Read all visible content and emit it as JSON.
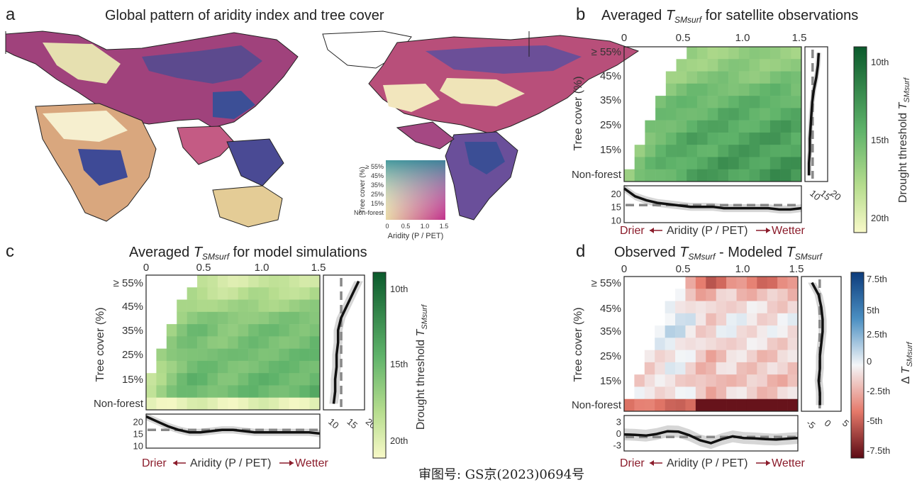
{
  "panels": {
    "a": {
      "letter": "a",
      "title": "Global pattern of aridity index and tree cover",
      "legend": {
        "ylabel": "Tree cover (%)",
        "xlabel": "Aridity (P / PET)",
        "yticks": [
          "≥ 55%",
          "45%",
          "35%",
          "25%",
          "15%",
          "Non-forest"
        ],
        "xticks": [
          "0",
          "0.5",
          "1.0",
          "1.5"
        ]
      }
    },
    "b": {
      "letter": "b",
      "title_pre": "Averaged ",
      "title_var": "T",
      "title_sub": "SMsurf",
      "title_post": " for satellite observations"
    },
    "c": {
      "letter": "c",
      "title_pre": "Averaged ",
      "title_var": "T",
      "title_sub": "SMsurf",
      "title_post": " for model simulations"
    },
    "d": {
      "letter": "d",
      "title_pre": "Observed ",
      "title_var": "T",
      "title_sub": "SMsurf",
      "title_mid": " - Modeled ",
      "title_var2": "T",
      "title_sub2": "SMsurf"
    }
  },
  "axes": {
    "x_ticks": [
      "0",
      "0.5",
      "1.0",
      "1.5"
    ],
    "y_ticks": [
      "≥ 55%",
      "45%",
      "35%",
      "25%",
      "15%",
      "Non-forest"
    ],
    "ylabel": "Tree cover (%)",
    "drier": "Drier",
    "xlabel": "Aridity (P / PET)",
    "wetter": "Wetter"
  },
  "colorbars": {
    "threshold": {
      "ticks": [
        "10th",
        "15th",
        "20th"
      ],
      "label_pre": "Drought threshold ",
      "label_var": "T",
      "label_sub": "SMsurf"
    },
    "diff": {
      "ticks": [
        "7.5th",
        "5th",
        "2.5th",
        "0",
        "-2.5th",
        "-5th",
        "-7.5th"
      ],
      "label_pre": "Δ ",
      "label_var": "T",
      "label_sub": "SMsurf"
    }
  },
  "marginals": {
    "b": {
      "right_ticks": [
        "10",
        "15",
        "20"
      ],
      "bottom_ticks": [
        "20",
        "15",
        "10"
      ]
    },
    "c": {
      "right_ticks": [
        "10",
        "15",
        "20"
      ],
      "bottom_ticks": [
        "20",
        "15",
        "10"
      ]
    },
    "d": {
      "right_ticks": [
        "-5",
        "0",
        "5"
      ],
      "bottom_ticks": [
        "3",
        "0",
        "-3"
      ]
    }
  },
  "chart_data": [
    {
      "panel": "b",
      "type": "heatmap",
      "x_range": [
        0,
        1.5
      ],
      "value_range": [
        10,
        20
      ],
      "row_profile": [
        16.5,
        16,
        15,
        13.5,
        12.5,
        12,
        11.5,
        11,
        11,
        10.5,
        10.5
      ],
      "col_profile": [
        22,
        19,
        17.5,
        16.5,
        16,
        15.5,
        15,
        15,
        15,
        14.5,
        14.5,
        14.5,
        14.5,
        14.5,
        14,
        14,
        14.5
      ]
    },
    {
      "panel": "c",
      "type": "heatmap",
      "x_range": [
        0,
        1.5
      ],
      "value_range": [
        10,
        20
      ],
      "row_profile": [
        20,
        18,
        16,
        14,
        13,
        13,
        12.5,
        12.5,
        12,
        12,
        11.5
      ],
      "col_profile": [
        22,
        20,
        18,
        16.5,
        15.5,
        15.5,
        16,
        16.5,
        16.5,
        16,
        15.5,
        15.5,
        15.5,
        15.5,
        15.5,
        15.5,
        15
      ]
    },
    {
      "panel": "d",
      "type": "heatmap",
      "x_range": [
        0,
        1.5
      ],
      "value_range": [
        -7.5,
        7.5
      ],
      "row_profile": [
        -3.5,
        -1,
        0,
        0.5,
        0.5,
        0,
        -0.5,
        -0.5,
        -1,
        -0.5,
        -0.5
      ],
      "col_profile": [
        -0.3,
        -0.4,
        -0.6,
        -0.2,
        0.5,
        0.4,
        -0.5,
        -1.8,
        -2.5,
        -1.5,
        -0.8,
        -1.2,
        -1.3,
        -1.5,
        -1.6,
        -1.4,
        -1.2
      ]
    }
  ],
  "footer": "审图号: GS京(2023)0694号"
}
